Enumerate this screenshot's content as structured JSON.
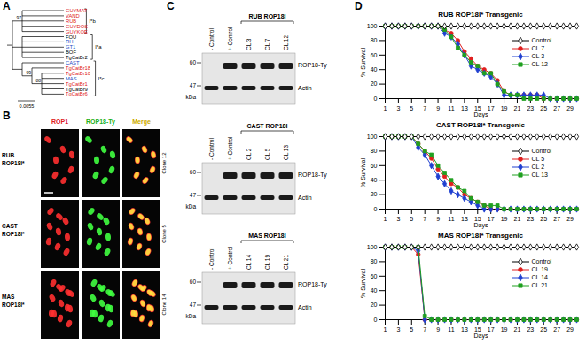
{
  "panel_labels": [
    "A",
    "B",
    "C",
    "D"
  ],
  "tree": {
    "root": {
      "children": [
        {
          "label": "I*b",
          "bootstrap": 97,
          "children": [
            {
              "leaf": "GUYMAT",
              "color": "#e02020"
            },
            {
              "leaf": "VAND",
              "color": "#e02020"
            },
            {
              "leaf": "RUB",
              "color": "#e02020"
            },
            {
              "leaf": "GUYDOS",
              "color": "#e02020"
            },
            {
              "leaf": "GUYKOE",
              "color": "#e02020"
            }
          ]
        },
        {
          "label": "I*a",
          "children": [
            {
              "leaf": "FOU",
              "color": "#000000"
            },
            {
              "leaf": "RH",
              "color": "#1f3fbf"
            },
            {
              "leaf": "GT1",
              "color": "#1f3fbf"
            },
            {
              "leaf": "BOF",
              "color": "#000000"
            },
            {
              "leaf": "TgCatBr2",
              "color": "#000000"
            }
          ]
        },
        {
          "label": "I*c",
          "children": [
            {
              "leaf": "CAST",
              "color": "#1f3fbf"
            },
            {
              "bootstrap": 99,
              "children": [
                {
                  "leaf": "TgCatBr18",
                  "color": "#e02020"
                },
                {
                  "bootstrap": 88,
                  "children": [
                    {
                      "leaf": "TgCatBr10",
                      "color": "#e02020"
                    },
                    {
                      "leaf": "MAS",
                      "color": "#1f3fbf"
                    },
                    {
                      "leaf": "TgCatBr1",
                      "color": "#e02020"
                    },
                    {
                      "leaf": "TgCatBr9",
                      "color": "#000000"
                    },
                    {
                      "leaf": "TgCatBr6",
                      "color": "#e02020"
                    }
                  ]
                }
              ]
            }
          ]
        }
      ]
    },
    "scale_bar": "0.0055"
  },
  "images": {
    "columns": [
      {
        "label": "ROP1",
        "color": "#e02020"
      },
      {
        "label": "ROP18-Ty",
        "color": "#20b020"
      },
      {
        "label": "Merge",
        "color": "#c8a800"
      }
    ],
    "rows": [
      {
        "label": "RUB ROP18I*",
        "clone": "Clone 12"
      },
      {
        "label": "CAST ROP18I*",
        "clone": "Clone 5"
      },
      {
        "label": "MAS ROP18I*",
        "clone": "Clone 14"
      }
    ]
  },
  "blots": [
    {
      "title": "RUB ROP18I",
      "controls": [
        "- Control",
        "+ Control"
      ],
      "clones": [
        "CL 3",
        "CL 7",
        "CL 12"
      ],
      "bands": [
        {
          "label": "ROP18-Ty",
          "present": [
            false,
            true,
            true,
            true,
            true
          ]
        },
        {
          "label": "Actin",
          "present": [
            true,
            true,
            true,
            true,
            true
          ]
        }
      ],
      "markers": [
        60,
        47
      ],
      "unit": "kDa"
    },
    {
      "title": "CAST ROP18I",
      "controls": [
        "- Control",
        "+ Control"
      ],
      "clones": [
        "CL 2",
        "CL 5",
        "CL 13"
      ],
      "bands": [
        {
          "label": "ROP18-Ty",
          "present": [
            false,
            true,
            true,
            true,
            true
          ]
        },
        {
          "label": "Actin",
          "present": [
            true,
            true,
            true,
            true,
            true
          ]
        }
      ],
      "markers": [
        60,
        47
      ],
      "unit": "kDa"
    },
    {
      "title": "MAS ROP18I",
      "controls": [
        "- Control",
        "+ Control"
      ],
      "clones": [
        "CL 14",
        "CL 19",
        "CL 21"
      ],
      "bands": [
        {
          "label": "ROP18-Ty",
          "present": [
            false,
            true,
            true,
            true,
            true
          ]
        },
        {
          "label": "Actin",
          "present": [
            true,
            true,
            true,
            true,
            true
          ]
        }
      ],
      "markers": [
        60,
        47
      ],
      "unit": "kDa"
    }
  ],
  "chart_data": [
    {
      "type": "line",
      "title": "RUB ROP18I* Transgenic",
      "xlabel": "Days",
      "ylabel": "% Survival",
      "x": [
        1,
        2,
        3,
        4,
        5,
        6,
        7,
        8,
        9,
        10,
        11,
        12,
        13,
        14,
        15,
        16,
        17,
        18,
        19,
        20,
        21,
        22,
        23,
        24,
        25,
        26,
        27,
        28,
        29,
        30
      ],
      "xlim": [
        1,
        30
      ],
      "xticks": [
        1,
        3,
        5,
        7,
        9,
        11,
        13,
        15,
        17,
        19,
        21,
        23,
        25,
        27,
        29
      ],
      "ylim": [
        0,
        100
      ],
      "yticks": [
        0,
        20,
        40,
        60,
        80,
        100
      ],
      "legend": "right",
      "series": [
        {
          "name": "Control",
          "color": "#000000",
          "marker": "open diamond",
          "values": [
            100,
            100,
            100,
            100,
            100,
            100,
            100,
            100,
            100,
            100,
            100,
            100,
            100,
            100,
            100,
            100,
            100,
            100,
            100,
            100,
            100,
            100,
            100,
            100,
            100,
            100,
            100,
            100,
            100,
            100
          ]
        },
        {
          "name": "CL 7",
          "color": "#e02020",
          "marker": "circle",
          "values": [
            100,
            100,
            100,
            100,
            100,
            100,
            100,
            100,
            100,
            95,
            90,
            80,
            65,
            55,
            45,
            40,
            35,
            25,
            10,
            5,
            5,
            5,
            5,
            5,
            0,
            0,
            0,
            0,
            0,
            0
          ]
        },
        {
          "name": "CL 3",
          "color": "#2040d0",
          "marker": "diamond",
          "values": [
            100,
            100,
            100,
            100,
            100,
            100,
            100,
            100,
            100,
            90,
            85,
            75,
            60,
            45,
            40,
            35,
            30,
            20,
            5,
            5,
            5,
            5,
            5,
            5,
            5,
            0,
            0,
            0,
            0,
            0
          ]
        },
        {
          "name": "CL 12",
          "color": "#20a020",
          "marker": "square",
          "values": [
            100,
            100,
            100,
            100,
            100,
            100,
            100,
            100,
            100,
            95,
            85,
            70,
            60,
            50,
            45,
            35,
            35,
            20,
            10,
            5,
            5,
            0,
            0,
            0,
            0,
            0,
            0,
            0,
            0,
            0
          ]
        }
      ]
    },
    {
      "type": "line",
      "title": "CAST ROP18I* Transgenic",
      "xlabel": "Days",
      "ylabel": "% Survival",
      "x": [
        1,
        2,
        3,
        4,
        5,
        6,
        7,
        8,
        9,
        10,
        11,
        12,
        13,
        14,
        15,
        16,
        17,
        18,
        19,
        20,
        21,
        22,
        23,
        24,
        25,
        26,
        27,
        28,
        29,
        30
      ],
      "xlim": [
        1,
        30
      ],
      "xticks": [
        1,
        3,
        5,
        7,
        9,
        11,
        13,
        15,
        17,
        19,
        21,
        23,
        25,
        27,
        29
      ],
      "ylim": [
        0,
        100
      ],
      "yticks": [
        0,
        20,
        40,
        60,
        80,
        100
      ],
      "legend": "right",
      "series": [
        {
          "name": "Control",
          "color": "#000000",
          "marker": "open diamond",
          "values": [
            100,
            100,
            100,
            100,
            100,
            100,
            100,
            100,
            100,
            100,
            100,
            100,
            100,
            100,
            100,
            100,
            100,
            100,
            100,
            100,
            100,
            100,
            100,
            100,
            100,
            100,
            100,
            100,
            100,
            100
          ]
        },
        {
          "name": "CL 5",
          "color": "#e02020",
          "marker": "circle",
          "values": [
            100,
            100,
            100,
            100,
            100,
            90,
            80,
            70,
            55,
            45,
            35,
            30,
            20,
            15,
            10,
            5,
            0,
            0,
            0,
            0,
            0,
            0,
            0,
            0,
            0,
            0,
            0,
            0,
            0,
            0
          ]
        },
        {
          "name": "CL 2",
          "color": "#2040d0",
          "marker": "diamond",
          "values": [
            100,
            100,
            100,
            100,
            100,
            85,
            75,
            60,
            45,
            35,
            25,
            20,
            15,
            10,
            5,
            0,
            0,
            0,
            0,
            0,
            0,
            0,
            0,
            0,
            0,
            0,
            0,
            0,
            0,
            0
          ]
        },
        {
          "name": "CL 13",
          "color": "#20a020",
          "marker": "square",
          "values": [
            100,
            100,
            100,
            100,
            100,
            90,
            80,
            75,
            60,
            50,
            40,
            30,
            25,
            15,
            10,
            5,
            5,
            5,
            0,
            0,
            0,
            0,
            0,
            0,
            0,
            0,
            0,
            0,
            0,
            0
          ]
        }
      ]
    },
    {
      "type": "line",
      "title": "MAS ROP18I* Transgenic",
      "xlabel": "Days",
      "ylabel": "% Survival",
      "x": [
        1,
        2,
        3,
        4,
        5,
        6,
        7,
        8,
        9,
        10,
        11,
        12,
        13,
        14,
        15,
        16,
        17,
        18,
        19,
        20,
        21,
        22,
        23,
        24,
        25,
        26,
        27,
        28,
        29,
        30
      ],
      "xlim": [
        1,
        30
      ],
      "xticks": [
        1,
        3,
        5,
        7,
        9,
        11,
        13,
        15,
        17,
        19,
        21,
        23,
        25,
        27,
        29
      ],
      "ylim": [
        0,
        100
      ],
      "yticks": [
        0,
        20,
        40,
        60,
        80,
        100
      ],
      "legend": "right",
      "series": [
        {
          "name": "Control",
          "color": "#000000",
          "marker": "open diamond",
          "values": [
            100,
            100,
            100,
            100,
            100,
            100,
            100,
            100,
            100,
            100,
            100,
            100,
            100,
            100,
            100,
            100,
            100,
            100,
            100,
            100,
            100,
            100,
            100,
            100,
            100,
            100,
            100,
            100,
            100,
            100
          ]
        },
        {
          "name": "CL 19",
          "color": "#e02020",
          "marker": "circle",
          "values": [
            100,
            100,
            100,
            100,
            100,
            90,
            0,
            0,
            0,
            0,
            0,
            0,
            0,
            0,
            0,
            0,
            0,
            0,
            0,
            0,
            0,
            0,
            0,
            0,
            0,
            0,
            0,
            0,
            0,
            0
          ]
        },
        {
          "name": "CL 14",
          "color": "#2040d0",
          "marker": "diamond",
          "values": [
            100,
            100,
            100,
            100,
            100,
            95,
            0,
            0,
            0,
            0,
            0,
            0,
            0,
            0,
            0,
            0,
            0,
            0,
            0,
            0,
            0,
            0,
            0,
            0,
            0,
            0,
            0,
            0,
            0,
            0
          ]
        },
        {
          "name": "CL 21",
          "color": "#20a020",
          "marker": "square",
          "values": [
            100,
            100,
            100,
            100,
            100,
            100,
            5,
            0,
            0,
            0,
            0,
            0,
            0,
            0,
            0,
            0,
            0,
            0,
            0,
            0,
            0,
            0,
            0,
            0,
            0,
            0,
            0,
            0,
            0,
            0
          ]
        }
      ]
    }
  ]
}
